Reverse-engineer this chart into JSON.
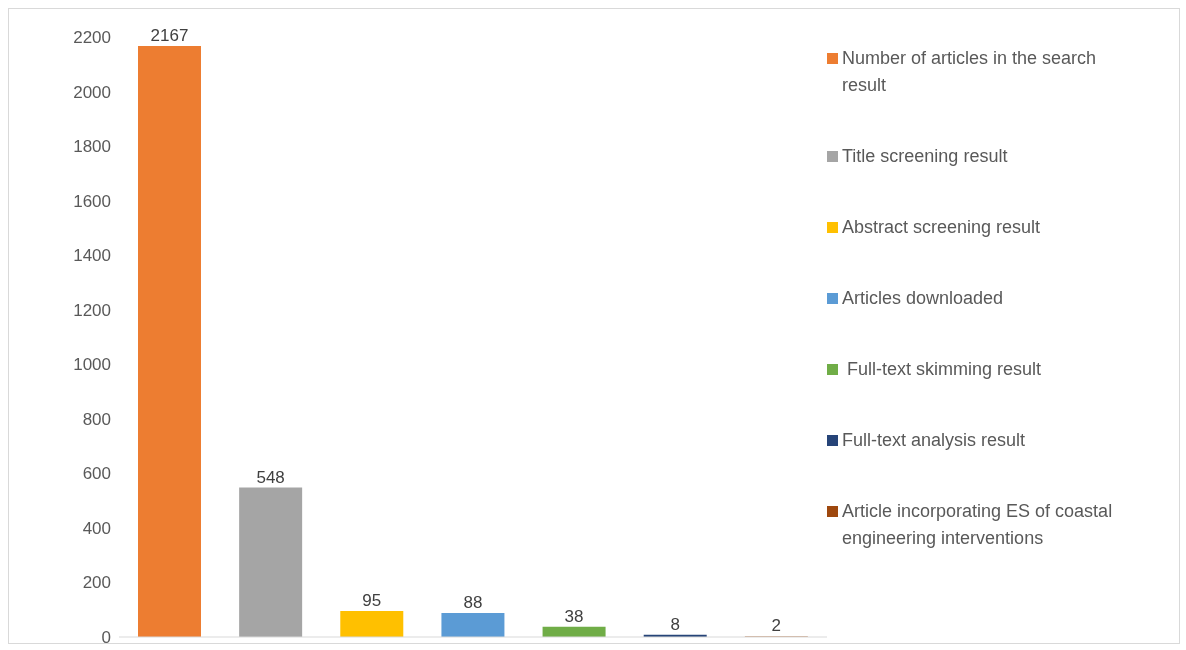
{
  "chart_data": {
    "type": "bar",
    "categories": [
      null,
      null,
      null,
      null,
      null,
      null,
      null
    ],
    "series": [
      {
        "name": "Number of articles in the search result",
        "color": "#ed7d31",
        "values": [
          2167,
          null,
          null,
          null,
          null,
          null,
          null
        ]
      },
      {
        "name": "Title screening result",
        "color": "#a5a5a5",
        "values": [
          null,
          548,
          null,
          null,
          null,
          null,
          null
        ]
      },
      {
        "name": "Abstract screening result",
        "color": "#ffc000",
        "values": [
          null,
          null,
          95,
          null,
          null,
          null,
          null
        ]
      },
      {
        "name": "Articles downloaded",
        "color": "#5b9bd5",
        "values": [
          null,
          null,
          null,
          88,
          null,
          null,
          null
        ]
      },
      {
        "name": " Full-text skimming result",
        "color": "#70ad47",
        "values": [
          null,
          null,
          null,
          null,
          38,
          null,
          null
        ]
      },
      {
        "name": "Full-text analysis result",
        "color": "#264478",
        "values": [
          null,
          null,
          null,
          null,
          null,
          8,
          null
        ]
      },
      {
        "name": "Article incorporating ES of coastal engineering interventions",
        "color": "#9e480e",
        "values": [
          null,
          null,
          null,
          null,
          null,
          null,
          2
        ]
      }
    ],
    "ylim": [
      0,
      2200
    ],
    "yticks": [
      0,
      200,
      400,
      600,
      800,
      1000,
      1200,
      1400,
      1600,
      1800,
      2000,
      2200
    ],
    "data_labels": true,
    "legend": "right"
  }
}
